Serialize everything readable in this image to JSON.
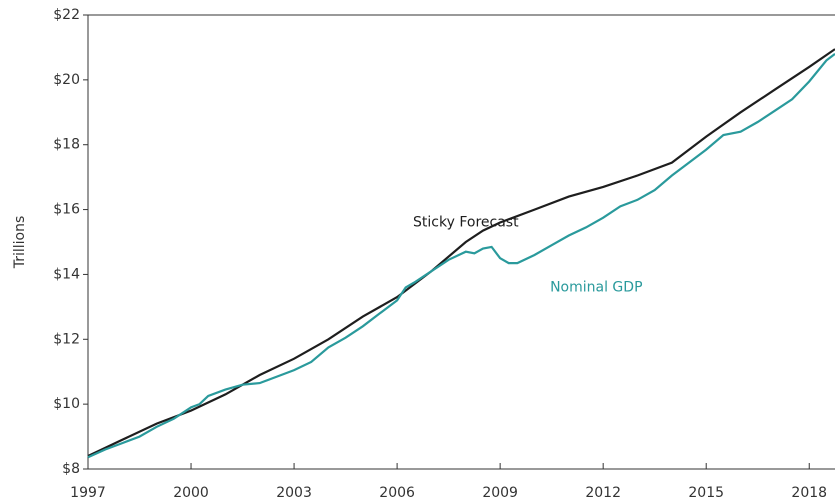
{
  "chart_data": {
    "type": "line",
    "y_label": "Trillions",
    "xlim": [
      1997,
      2018.75
    ],
    "xticks": [
      1997,
      2000,
      2003,
      2006,
      2009,
      2012,
      2015,
      2018
    ],
    "ylim": [
      8,
      22
    ],
    "yticks": [
      {
        "value": 8,
        "label": "$8"
      },
      {
        "value": 10,
        "label": "$10"
      },
      {
        "value": 12,
        "label": "$12"
      },
      {
        "value": 14,
        "label": "$14"
      },
      {
        "value": 16,
        "label": "$16"
      },
      {
        "value": 18,
        "label": "$18"
      },
      {
        "value": 20,
        "label": "$20"
      },
      {
        "value": 22,
        "label": "$22"
      }
    ],
    "grid": false,
    "series": [
      {
        "name": "Sticky Forecast",
        "color": "#1e1e1e",
        "x": [
          1997,
          1998,
          1999,
          2000,
          2001,
          2002,
          2003,
          2004,
          2005,
          2006,
          2007,
          2008,
          2008.5,
          2009,
          2010,
          2011,
          2012,
          2013,
          2014,
          2015,
          2016,
          2017,
          2018,
          2018.75
        ],
        "values": [
          8.4,
          8.9,
          9.4,
          9.8,
          10.3,
          10.9,
          11.4,
          12.0,
          12.7,
          13.3,
          14.1,
          15.0,
          15.35,
          15.6,
          16.0,
          16.4,
          16.7,
          17.05,
          17.45,
          18.25,
          19.0,
          19.7,
          20.4,
          20.95
        ]
      },
      {
        "name": "Nominal GDP",
        "color": "#2a9a9c",
        "x": [
          1997,
          1997.5,
          1998,
          1998.5,
          1999,
          1999.5,
          2000,
          2000.25,
          2000.5,
          2001,
          2001.5,
          2002,
          2002.5,
          2003,
          2003.5,
          2004,
          2004.5,
          2005,
          2005.5,
          2006,
          2006.25,
          2006.5,
          2007,
          2007.5,
          2008,
          2008.25,
          2008.5,
          2008.75,
          2009,
          2009.25,
          2009.5,
          2010,
          2010.5,
          2011,
          2011.5,
          2012,
          2012.5,
          2013,
          2013.5,
          2014,
          2014.5,
          2015,
          2015.5,
          2016,
          2016.5,
          2017,
          2017.5,
          2018,
          2018.5,
          2018.75
        ],
        "values": [
          8.36,
          8.6,
          8.8,
          9.0,
          9.3,
          9.55,
          9.9,
          10.0,
          10.25,
          10.45,
          10.6,
          10.65,
          10.85,
          11.05,
          11.3,
          11.75,
          12.05,
          12.4,
          12.8,
          13.2,
          13.6,
          13.75,
          14.1,
          14.45,
          14.7,
          14.65,
          14.8,
          14.85,
          14.5,
          14.35,
          14.35,
          14.6,
          14.9,
          15.2,
          15.45,
          15.75,
          16.1,
          16.3,
          16.6,
          17.05,
          17.45,
          17.85,
          18.3,
          18.4,
          18.7,
          19.05,
          19.4,
          19.95,
          20.6,
          20.8
        ]
      }
    ]
  }
}
